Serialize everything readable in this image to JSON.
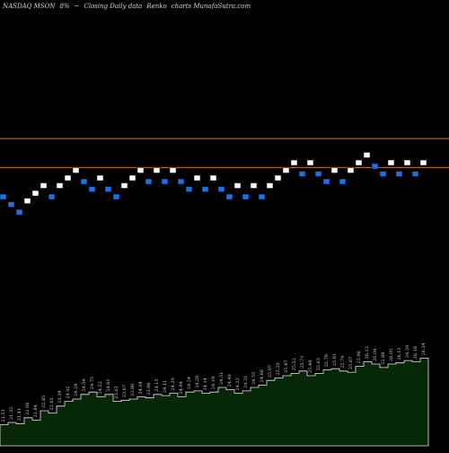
{
  "header": {
    "exchange_symbol": "NASDAQ MSON",
    "change": "8%",
    "arrow": "~",
    "chart_desc": "Closing Daily data",
    "renko_label": "Renko",
    "charts_by": "charts MunafaSutra.com"
  },
  "colors": {
    "background": "#000000",
    "up_brick": "#ffffff",
    "down_brick": "#1e6fe8",
    "ref_line": "#c8782a",
    "volume_fill": "#062806",
    "volume_stroke": "#e8e8e8",
    "label": "#d0d0d0"
  },
  "chart_data": {
    "type": "renko",
    "reference_lines": [
      {
        "value": 25.8,
        "label": ""
      },
      {
        "value": 23.9,
        "label": ""
      }
    ],
    "bricks": [
      {
        "close": 22.1,
        "dir": "down"
      },
      {
        "close": 21.6,
        "dir": "down"
      },
      {
        "close": 21.1,
        "dir": "down"
      },
      {
        "close": 21.6,
        "dir": "up"
      },
      {
        "close": 22.1,
        "dir": "up"
      },
      {
        "close": 22.6,
        "dir": "up"
      },
      {
        "close": 22.1,
        "dir": "down"
      },
      {
        "close": 22.6,
        "dir": "up"
      },
      {
        "close": 23.1,
        "dir": "up"
      },
      {
        "close": 23.6,
        "dir": "up"
      },
      {
        "close": 23.1,
        "dir": "down"
      },
      {
        "close": 22.6,
        "dir": "down"
      },
      {
        "close": 23.1,
        "dir": "up"
      },
      {
        "close": 22.6,
        "dir": "down"
      },
      {
        "close": 22.1,
        "dir": "down"
      },
      {
        "close": 22.6,
        "dir": "up"
      },
      {
        "close": 23.1,
        "dir": "up"
      },
      {
        "close": 23.6,
        "dir": "up"
      },
      {
        "close": 23.1,
        "dir": "down"
      },
      {
        "close": 23.6,
        "dir": "up"
      },
      {
        "close": 23.1,
        "dir": "down"
      },
      {
        "close": 23.6,
        "dir": "up"
      },
      {
        "close": 23.1,
        "dir": "down"
      },
      {
        "close": 22.6,
        "dir": "down"
      },
      {
        "close": 23.1,
        "dir": "up"
      },
      {
        "close": 22.6,
        "dir": "down"
      },
      {
        "close": 23.1,
        "dir": "up"
      },
      {
        "close": 22.6,
        "dir": "down"
      },
      {
        "close": 22.1,
        "dir": "down"
      },
      {
        "close": 22.6,
        "dir": "up"
      },
      {
        "close": 22.1,
        "dir": "down"
      },
      {
        "close": 22.6,
        "dir": "up"
      },
      {
        "close": 22.1,
        "dir": "down"
      },
      {
        "close": 22.6,
        "dir": "up"
      },
      {
        "close": 23.1,
        "dir": "up"
      },
      {
        "close": 23.6,
        "dir": "up"
      },
      {
        "close": 24.1,
        "dir": "up"
      },
      {
        "close": 23.6,
        "dir": "down"
      },
      {
        "close": 24.1,
        "dir": "up"
      },
      {
        "close": 23.6,
        "dir": "down"
      },
      {
        "close": 23.1,
        "dir": "down"
      },
      {
        "close": 23.6,
        "dir": "up"
      },
      {
        "close": 23.1,
        "dir": "down"
      },
      {
        "close": 23.6,
        "dir": "up"
      },
      {
        "close": 24.1,
        "dir": "up"
      },
      {
        "close": 24.6,
        "dir": "up"
      },
      {
        "close": 24.1,
        "dir": "down"
      },
      {
        "close": 23.6,
        "dir": "down"
      },
      {
        "close": 24.1,
        "dir": "up"
      },
      {
        "close": 23.6,
        "dir": "down"
      },
      {
        "close": 24.1,
        "dir": "up"
      },
      {
        "close": 23.6,
        "dir": "down"
      },
      {
        "close": 24.1,
        "dir": "up"
      }
    ],
    "volume_labels": [
      {
        "text": "21.53"
      },
      {
        "text": "21.32"
      },
      {
        "text": "21.41"
      },
      {
        "text": "22.06"
      },
      {
        "text": "21.84"
      },
      {
        "text": "22.85"
      },
      {
        "text": "22.61"
      },
      {
        "text": "23.39"
      },
      {
        "text": "24.02"
      },
      {
        "text": "24.24"
      },
      {
        "text": "24.59"
      },
      {
        "text": "24.75"
      },
      {
        "text": "24.52"
      },
      {
        "text": "24.61"
      },
      {
        "text": "23.63"
      },
      {
        "text": "23.67"
      },
      {
        "text": "23.86"
      },
      {
        "text": "24.04"
      },
      {
        "text": "23.96"
      },
      {
        "text": "24.15"
      },
      {
        "text": "24.11"
      },
      {
        "text": "24.20"
      },
      {
        "text": "24.04"
      },
      {
        "text": "24.24"
      },
      {
        "text": "24.26"
      },
      {
        "text": "24.14"
      },
      {
        "text": "24.19"
      },
      {
        "text": "24.51"
      },
      {
        "text": "24.40"
      },
      {
        "text": "24.22"
      },
      {
        "text": "24.31"
      },
      {
        "text": "24.55"
      },
      {
        "text": "24.68"
      },
      {
        "text": "25.07"
      },
      {
        "text": "25.20"
      },
      {
        "text": "25.47"
      },
      {
        "text": "25.52"
      },
      {
        "text": "25.71"
      },
      {
        "text": "25.48"
      },
      {
        "text": "25.63"
      },
      {
        "text": "25.79"
      },
      {
        "text": "25.81"
      },
      {
        "text": "25.70"
      },
      {
        "text": "25.67"
      },
      {
        "text": "25.96"
      },
      {
        "text": "26.12"
      },
      {
        "text": "26.04"
      },
      {
        "text": "25.89"
      },
      {
        "text": "26.05"
      },
      {
        "text": "26.11"
      },
      {
        "text": "26.20"
      },
      {
        "text": "26.18"
      },
      {
        "text": "26.34"
      }
    ],
    "volume_values": [
      18,
      20,
      19,
      24,
      22,
      30,
      28,
      34,
      38,
      40,
      44,
      46,
      42,
      44,
      38,
      39,
      40,
      42,
      41,
      44,
      43,
      45,
      42,
      46,
      47,
      45,
      46,
      50,
      48,
      45,
      47,
      50,
      52,
      56,
      58,
      60,
      62,
      64,
      60,
      62,
      65,
      66,
      64,
      63,
      68,
      72,
      70,
      67,
      70,
      71,
      73,
      72,
      75
    ],
    "xlabel": "",
    "ylabel": ""
  }
}
